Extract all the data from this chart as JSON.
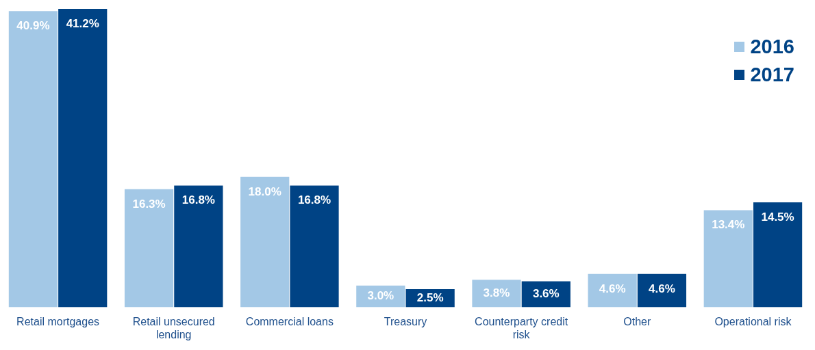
{
  "chart_data": {
    "type": "bar",
    "categories": [
      "Retail mortgages",
      "Retail unsecured lending",
      "Commercial loans",
      "Treasury",
      "Counterparty credit risk",
      "Other",
      "Operational risk"
    ],
    "series": [
      {
        "name": "2016",
        "color": "#a3c8e6",
        "values": [
          40.9,
          16.3,
          18.0,
          3.0,
          3.8,
          4.6,
          13.4
        ],
        "value_labels": [
          "40.9%",
          "16.3%",
          "18.0%",
          "3.0%",
          "3.8%",
          "4.6%",
          "13.4%"
        ]
      },
      {
        "name": "2017",
        "color": "#004385",
        "values": [
          41.2,
          16.8,
          16.8,
          2.5,
          3.6,
          4.6,
          14.5
        ],
        "value_labels": [
          "41.2%",
          "16.8%",
          "16.8%",
          "2.5%",
          "3.6%",
          "4.6%",
          "14.5%"
        ]
      }
    ],
    "legend": "top right",
    "grid": false
  }
}
